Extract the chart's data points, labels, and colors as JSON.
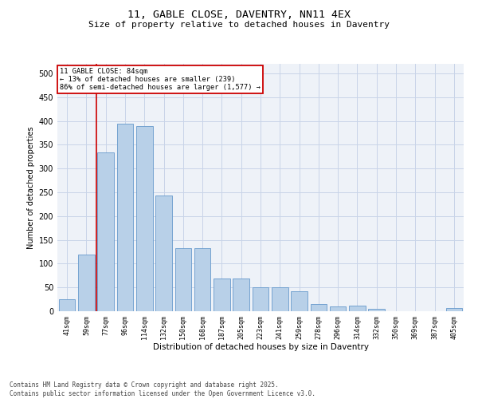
{
  "title": "11, GABLE CLOSE, DAVENTRY, NN11 4EX",
  "subtitle": "Size of property relative to detached houses in Daventry",
  "xlabel": "Distribution of detached houses by size in Daventry",
  "ylabel": "Number of detached properties",
  "categories": [
    "41sqm",
    "59sqm",
    "77sqm",
    "96sqm",
    "114sqm",
    "132sqm",
    "150sqm",
    "168sqm",
    "187sqm",
    "205sqm",
    "223sqm",
    "241sqm",
    "259sqm",
    "278sqm",
    "296sqm",
    "314sqm",
    "332sqm",
    "350sqm",
    "369sqm",
    "387sqm",
    "405sqm"
  ],
  "values": [
    26,
    119,
    333,
    395,
    390,
    244,
    133,
    133,
    69,
    68,
    50,
    51,
    42,
    15,
    10,
    11,
    5,
    0,
    0,
    0,
    6
  ],
  "bar_color": "#b8d0e8",
  "bar_edge_color": "#6699cc",
  "annotation_box_text": "11 GABLE CLOSE: 84sqm\n← 13% of detached houses are smaller (239)\n86% of semi-detached houses are larger (1,577) →",
  "annotation_box_color": "#ffffff",
  "annotation_box_border": "#cc0000",
  "vline_color": "#cc0000",
  "vline_x": 1.5,
  "grid_color": "#c8d4e8",
  "background_color": "#eef2f8",
  "ylim": [
    0,
    520
  ],
  "yticks": [
    0,
    50,
    100,
    150,
    200,
    250,
    300,
    350,
    400,
    450,
    500
  ],
  "footer": "Contains HM Land Registry data © Crown copyright and database right 2025.\nContains public sector information licensed under the Open Government Licence v3.0.",
  "title_fontsize": 9.5,
  "subtitle_fontsize": 8,
  "label_fontsize": 7,
  "tick_fontsize": 6,
  "footer_fontsize": 5.5,
  "ann_fontsize": 6.2
}
